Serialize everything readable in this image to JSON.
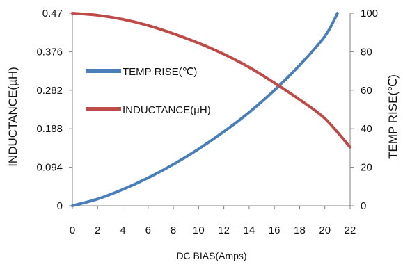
{
  "chart_data": {
    "type": "line",
    "xlabel": "DC  BIAS(Amps)",
    "ylabel": "INDUCTANCE(µH)",
    "y2label": "TEMP RISE(℃)",
    "xlim": [
      0,
      22
    ],
    "ylim": [
      0,
      0.47
    ],
    "y2lim": [
      0,
      100
    ],
    "xticks": [
      "0",
      "2",
      "4",
      "6",
      "8",
      "10",
      "12",
      "14",
      "16",
      "18",
      "20",
      "22"
    ],
    "yticks": [
      "0",
      "0.094",
      "0.188",
      "0.282",
      "0.376",
      "0.47"
    ],
    "y2ticks": [
      "0",
      "20",
      "40",
      "60",
      "80",
      "100"
    ],
    "grid": false,
    "legend_position": "center-left",
    "series": [
      {
        "name": "TEMP RISE(℃)",
        "axis": "right",
        "color": "#4a7ebb",
        "x": [
          0,
          2,
          4,
          6,
          8,
          10,
          12,
          14,
          16,
          18,
          20,
          21
        ],
        "y": [
          0,
          3.5,
          8.5,
          14.5,
          21.5,
          29.5,
          38.5,
          48.5,
          60,
          73,
          88,
          100
        ]
      },
      {
        "name": "INDUCTANCE(µH)",
        "axis": "left",
        "color": "#be4b48",
        "x": [
          0,
          2,
          4,
          6,
          8,
          10,
          12,
          14,
          16,
          18,
          20,
          22
        ],
        "y": [
          0.47,
          0.465,
          0.455,
          0.44,
          0.42,
          0.397,
          0.37,
          0.338,
          0.3,
          0.259,
          0.213,
          0.143
        ]
      }
    ]
  }
}
